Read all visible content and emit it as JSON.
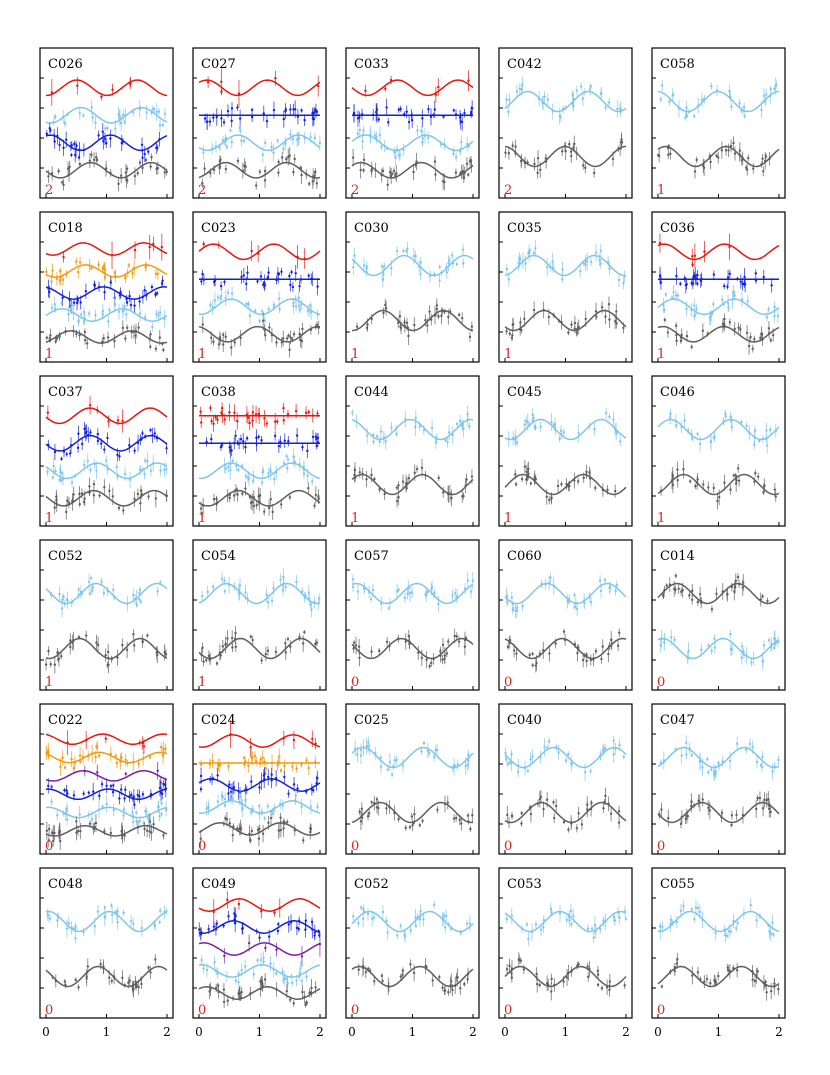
{
  "figure": {
    "x_ticks": [
      "0",
      "1",
      "2"
    ],
    "x_tick_values": [
      0,
      1,
      2
    ]
  },
  "colors": {
    "red": "#e8150f",
    "orange": "#f29a12",
    "purple": "#7a1fa2",
    "blue": "#1320d8",
    "lightblue": "#7fc6ee",
    "gray": "#5e5e5e",
    "label": "#e0201a",
    "frame": "#000000"
  },
  "chart_data": [
    {
      "type": "scatter",
      "title": "C026",
      "count": "2",
      "xlim": [
        0,
        2
      ],
      "series": [
        {
          "color": "red",
          "sparse": true
        },
        {
          "color": "lightblue"
        },
        {
          "color": "blue"
        },
        {
          "color": "gray"
        }
      ]
    },
    {
      "type": "scatter",
      "title": "C027",
      "count": "2",
      "xlim": [
        0,
        2
      ],
      "series": [
        {
          "color": "red",
          "sparse": true
        },
        {
          "color": "blue",
          "flat": true
        },
        {
          "color": "lightblue"
        },
        {
          "color": "gray"
        }
      ]
    },
    {
      "type": "scatter",
      "title": "C033",
      "count": "2",
      "xlim": [
        0,
        2
      ],
      "series": [
        {
          "color": "red",
          "sparse": true
        },
        {
          "color": "blue",
          "flat": true
        },
        {
          "color": "lightblue"
        },
        {
          "color": "gray"
        }
      ]
    },
    {
      "type": "scatter",
      "title": "C042",
      "count": "2",
      "xlim": [
        0,
        2
      ],
      "series": [
        {
          "color": "lightblue"
        },
        {
          "color": "gray"
        }
      ]
    },
    {
      "type": "scatter",
      "title": "C058",
      "count": "1",
      "xlim": [
        0,
        2
      ],
      "series": [
        {
          "color": "lightblue"
        },
        {
          "color": "gray"
        }
      ]
    },
    {
      "type": "scatter",
      "title": "C018",
      "count": "1",
      "xlim": [
        0,
        2
      ],
      "series": [
        {
          "color": "red",
          "sparse": true
        },
        {
          "color": "orange"
        },
        {
          "color": "blue"
        },
        {
          "color": "lightblue"
        },
        {
          "color": "gray"
        }
      ]
    },
    {
      "type": "scatter",
      "title": "C023",
      "count": "1",
      "xlim": [
        0,
        2
      ],
      "series": [
        {
          "color": "red",
          "sparse": true
        },
        {
          "color": "blue",
          "flat": true
        },
        {
          "color": "lightblue"
        },
        {
          "color": "gray"
        }
      ]
    },
    {
      "type": "scatter",
      "title": "C030",
      "count": "1",
      "xlim": [
        0,
        2
      ],
      "series": [
        {
          "color": "lightblue"
        },
        {
          "color": "gray"
        }
      ]
    },
    {
      "type": "scatter",
      "title": "C035",
      "count": "1",
      "xlim": [
        0,
        2
      ],
      "series": [
        {
          "color": "lightblue"
        },
        {
          "color": "gray"
        }
      ]
    },
    {
      "type": "scatter",
      "title": "C036",
      "count": "1",
      "xlim": [
        0,
        2
      ],
      "series": [
        {
          "color": "red",
          "sparse": true
        },
        {
          "color": "blue",
          "flat": true
        },
        {
          "color": "lightblue"
        },
        {
          "color": "gray"
        }
      ]
    },
    {
      "type": "scatter",
      "title": "C037",
      "count": "1",
      "xlim": [
        0,
        2
      ],
      "series": [
        {
          "color": "red",
          "sparse": true
        },
        {
          "color": "blue"
        },
        {
          "color": "lightblue"
        },
        {
          "color": "gray"
        }
      ]
    },
    {
      "type": "scatter",
      "title": "C038",
      "count": "1",
      "xlim": [
        0,
        2
      ],
      "series": [
        {
          "color": "red",
          "flat": true
        },
        {
          "color": "blue",
          "flat": true
        },
        {
          "color": "lightblue"
        },
        {
          "color": "gray"
        }
      ]
    },
    {
      "type": "scatter",
      "title": "C044",
      "count": "1",
      "xlim": [
        0,
        2
      ],
      "series": [
        {
          "color": "lightblue"
        },
        {
          "color": "gray"
        }
      ]
    },
    {
      "type": "scatter",
      "title": "C045",
      "count": "1",
      "xlim": [
        0,
        2
      ],
      "series": [
        {
          "color": "lightblue"
        },
        {
          "color": "gray"
        }
      ]
    },
    {
      "type": "scatter",
      "title": "C046",
      "count": "1",
      "xlim": [
        0,
        2
      ],
      "series": [
        {
          "color": "lightblue"
        },
        {
          "color": "gray"
        }
      ]
    },
    {
      "type": "scatter",
      "title": "C052",
      "count": "1",
      "xlim": [
        0,
        2
      ],
      "series": [
        {
          "color": "lightblue"
        },
        {
          "color": "gray"
        }
      ]
    },
    {
      "type": "scatter",
      "title": "C054",
      "count": "1",
      "xlim": [
        0,
        2
      ],
      "series": [
        {
          "color": "lightblue"
        },
        {
          "color": "gray"
        }
      ]
    },
    {
      "type": "scatter",
      "title": "C057",
      "count": "0",
      "xlim": [
        0,
        2
      ],
      "series": [
        {
          "color": "lightblue"
        },
        {
          "color": "gray"
        }
      ]
    },
    {
      "type": "scatter",
      "title": "C060",
      "count": "0",
      "xlim": [
        0,
        2
      ],
      "series": [
        {
          "color": "lightblue"
        },
        {
          "color": "gray"
        }
      ]
    },
    {
      "type": "scatter",
      "title": "C014",
      "count": "0",
      "xlim": [
        0,
        2
      ],
      "series": [
        {
          "color": "gray"
        },
        {
          "color": "lightblue"
        }
      ]
    },
    {
      "type": "scatter",
      "title": "C022",
      "count": "0",
      "xlim": [
        0,
        2
      ],
      "series": [
        {
          "color": "red",
          "sparse": true
        },
        {
          "color": "orange"
        },
        {
          "color": "purple",
          "sparse": true
        },
        {
          "color": "blue"
        },
        {
          "color": "lightblue"
        },
        {
          "color": "gray"
        }
      ]
    },
    {
      "type": "scatter",
      "title": "C024",
      "count": "0",
      "xlim": [
        0,
        2
      ],
      "series": [
        {
          "color": "red",
          "sparse": true
        },
        {
          "color": "orange",
          "flat": true
        },
        {
          "color": "blue"
        },
        {
          "color": "lightblue"
        },
        {
          "color": "gray"
        }
      ]
    },
    {
      "type": "scatter",
      "title": "C025",
      "count": "0",
      "xlim": [
        0,
        2
      ],
      "series": [
        {
          "color": "lightblue"
        },
        {
          "color": "gray"
        }
      ]
    },
    {
      "type": "scatter",
      "title": "C040",
      "count": "0",
      "xlim": [
        0,
        2
      ],
      "series": [
        {
          "color": "lightblue"
        },
        {
          "color": "gray"
        }
      ]
    },
    {
      "type": "scatter",
      "title": "C047",
      "count": "0",
      "xlim": [
        0,
        2
      ],
      "series": [
        {
          "color": "lightblue"
        },
        {
          "color": "gray"
        }
      ]
    },
    {
      "type": "scatter",
      "title": "C048",
      "count": "0",
      "xlim": [
        0,
        2
      ],
      "series": [
        {
          "color": "lightblue"
        },
        {
          "color": "gray"
        }
      ]
    },
    {
      "type": "scatter",
      "title": "C049",
      "count": "0",
      "xlim": [
        0,
        2
      ],
      "series": [
        {
          "color": "red",
          "sparse": true
        },
        {
          "color": "blue"
        },
        {
          "color": "purple",
          "sparse": true
        },
        {
          "color": "lightblue"
        },
        {
          "color": "gray"
        }
      ]
    },
    {
      "type": "scatter",
      "title": "C052",
      "count": "0",
      "xlim": [
        0,
        2
      ],
      "series": [
        {
          "color": "lightblue"
        },
        {
          "color": "gray"
        }
      ]
    },
    {
      "type": "scatter",
      "title": "C053",
      "count": "0",
      "xlim": [
        0,
        2
      ],
      "series": [
        {
          "color": "lightblue"
        },
        {
          "color": "gray"
        }
      ]
    },
    {
      "type": "scatter",
      "title": "C055",
      "count": "0",
      "xlim": [
        0,
        2
      ],
      "series": [
        {
          "color": "lightblue"
        },
        {
          "color": "gray"
        }
      ]
    }
  ]
}
